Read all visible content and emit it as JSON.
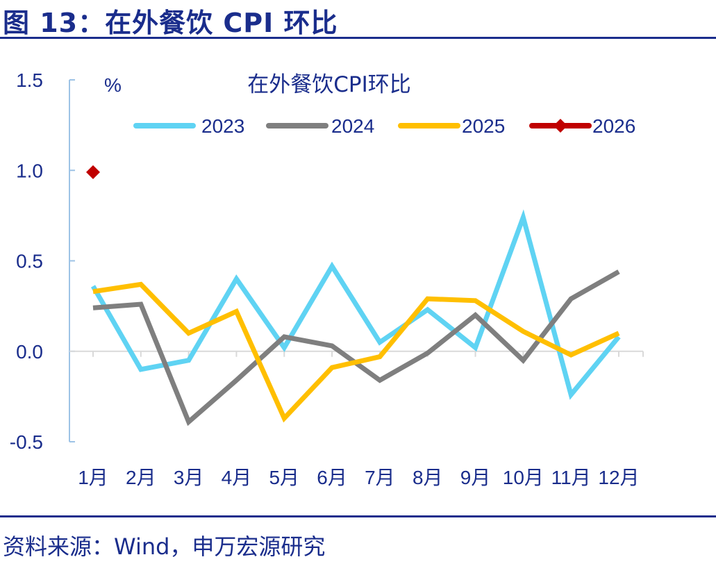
{
  "figure": {
    "title": "图 13：在外餐饮 CPI 环比",
    "source": "资料来源：Wind，申万宏源研究"
  },
  "chart_data": {
    "type": "line",
    "title": "在外餐饮CPI环比",
    "ylabel": "%",
    "xlabel": "",
    "ylim": [
      -0.5,
      1.5
    ],
    "yticks": [
      "1.5",
      "1.0",
      "0.5",
      "0.0",
      "-0.5"
    ],
    "categories": [
      "1月",
      "2月",
      "3月",
      "4月",
      "5月",
      "6月",
      "7月",
      "8月",
      "9月",
      "10月",
      "11月",
      "12月"
    ],
    "legend_position": "top",
    "grid": false,
    "series": [
      {
        "name": "2023",
        "color": "#5fd3f3",
        "marker": "none",
        "values": [
          0.36,
          -0.1,
          -0.05,
          0.4,
          0.02,
          0.47,
          0.05,
          0.23,
          0.02,
          0.74,
          -0.24,
          0.08
        ]
      },
      {
        "name": "2024",
        "color": "#7f7f7f",
        "marker": "none",
        "values": [
          0.24,
          0.26,
          -0.39,
          -0.16,
          0.08,
          0.03,
          -0.16,
          -0.01,
          0.2,
          -0.05,
          0.29,
          0.44
        ]
      },
      {
        "name": "2025",
        "color": "#ffbf00",
        "marker": "none",
        "values": [
          0.33,
          0.37,
          0.1,
          0.22,
          -0.37,
          -0.09,
          -0.03,
          0.29,
          0.28,
          0.11,
          -0.02,
          0.1
        ]
      },
      {
        "name": "2026",
        "color": "#c00000",
        "marker": "diamond",
        "values": [
          0.99,
          null,
          null,
          null,
          null,
          null,
          null,
          null,
          null,
          null,
          null,
          null
        ]
      }
    ]
  }
}
